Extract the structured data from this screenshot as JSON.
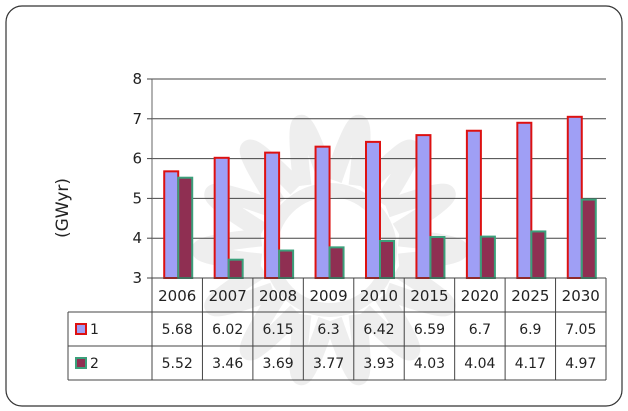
{
  "chart_data": {
    "type": "bar",
    "title": "",
    "xlabel": "",
    "ylabel": "(GWyr)",
    "ylim": [
      3,
      8
    ],
    "yticks": [
      3,
      4,
      5,
      6,
      7,
      8
    ],
    "grid": true,
    "legend_placement": "data-table-left",
    "categories": [
      "2006",
      "2007",
      "2008",
      "2009",
      "2010",
      "2015",
      "2020",
      "2025",
      "2030"
    ],
    "series": [
      {
        "name": "1",
        "values": [
          5.68,
          6.02,
          6.15,
          6.3,
          6.42,
          6.59,
          6.7,
          6.9,
          7.05
        ],
        "fill": "#9f9ff5",
        "stroke": "#dd1111"
      },
      {
        "name": "2",
        "values": [
          5.52,
          3.46,
          3.69,
          3.77,
          3.93,
          4.03,
          4.04,
          4.17,
          4.97
        ],
        "fill": "#8f2f52",
        "stroke": "#3b9f7a"
      }
    ]
  },
  "colors": {
    "background": "#ffffff",
    "frame": "#333333",
    "watermark": "#cfcfcf",
    "plot_border": "#666666",
    "grid": "#444444"
  }
}
